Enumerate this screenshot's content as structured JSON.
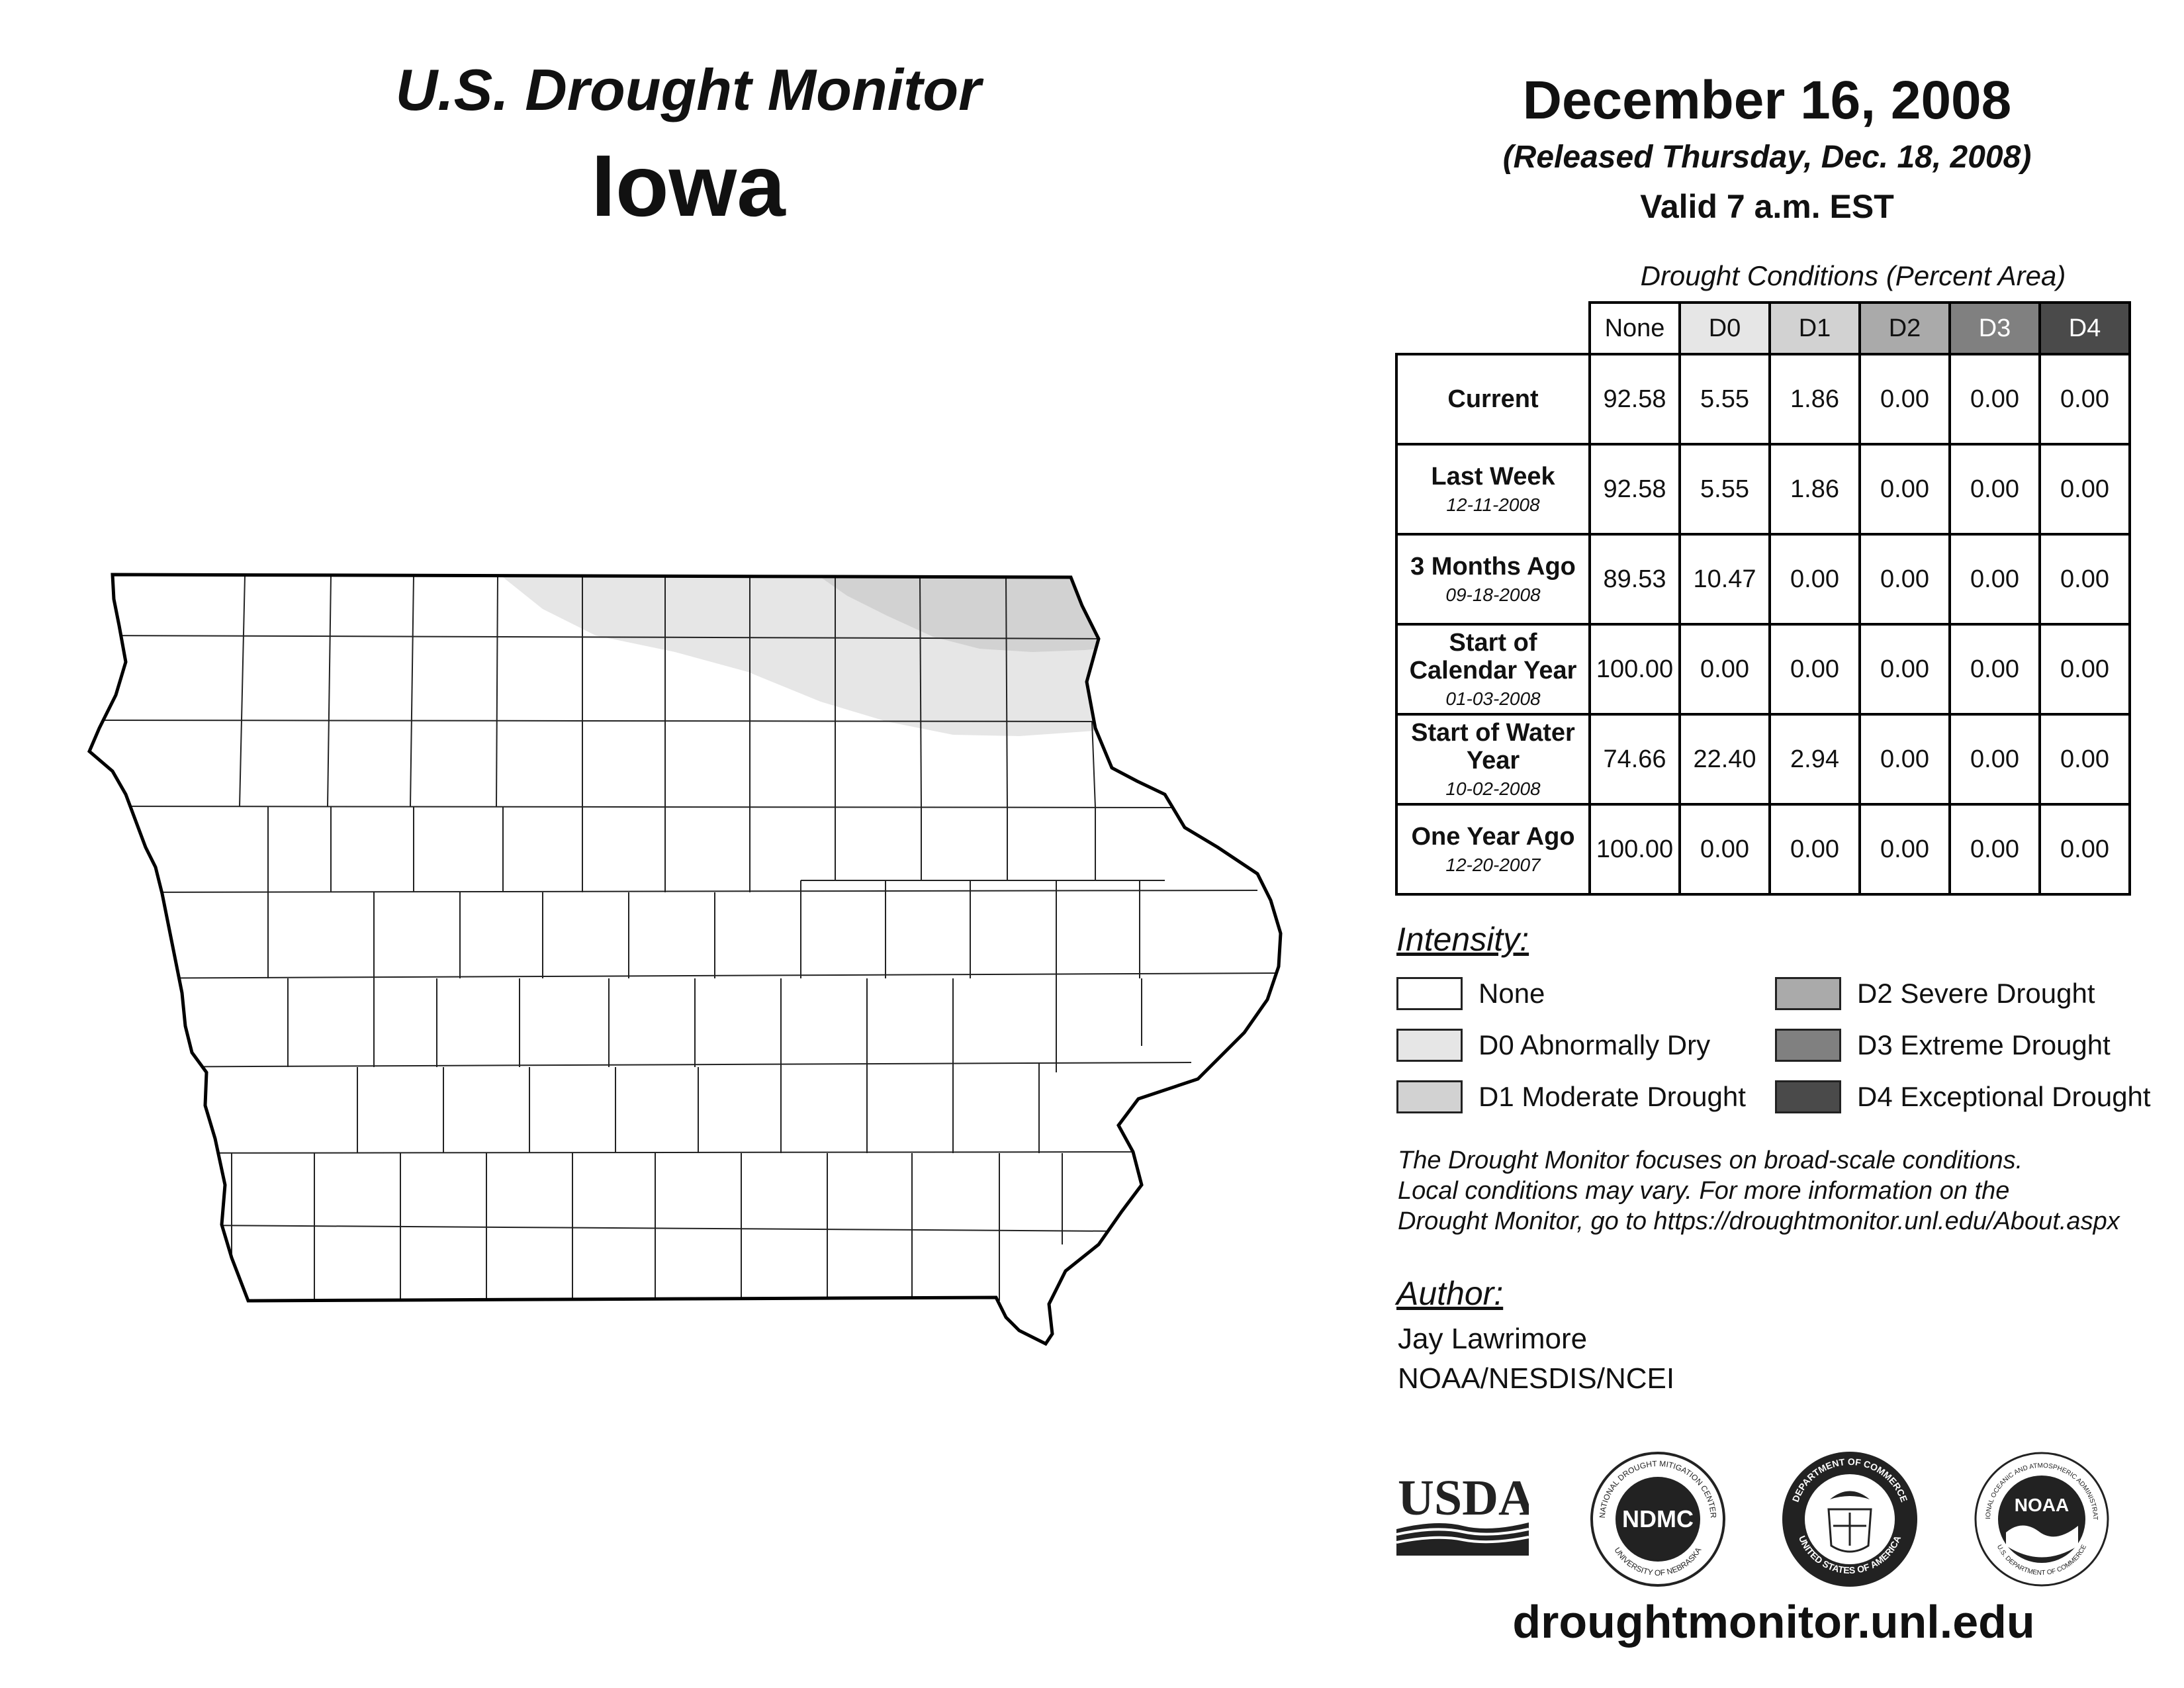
{
  "header": {
    "title": "U.S. Drought Monitor",
    "state": "Iowa",
    "date": "December 16, 2008",
    "released": "(Released Thursday, Dec. 18, 2008)",
    "valid": "Valid 7 a.m. EST"
  },
  "table": {
    "caption": "Drought Conditions (Percent Area)",
    "columns": [
      "None",
      "D0",
      "D1",
      "D2",
      "D3",
      "D4"
    ],
    "column_colors": [
      "#ffffff",
      "#e6e6e6",
      "#d2d2d2",
      "#aaaaaa",
      "#808080",
      "#4a4a4a"
    ],
    "rows": [
      {
        "label": "Current",
        "date": "",
        "values": [
          "92.58",
          "5.55",
          "1.86",
          "0.00",
          "0.00",
          "0.00"
        ]
      },
      {
        "label": "Last Week",
        "date": "12-11-2008",
        "values": [
          "92.58",
          "5.55",
          "1.86",
          "0.00",
          "0.00",
          "0.00"
        ]
      },
      {
        "label": "3 Months Ago",
        "date": "09-18-2008",
        "values": [
          "89.53",
          "10.47",
          "0.00",
          "0.00",
          "0.00",
          "0.00"
        ]
      },
      {
        "label": "Start of Calendar Year",
        "date": "01-03-2008",
        "values": [
          "100.00",
          "0.00",
          "0.00",
          "0.00",
          "0.00",
          "0.00"
        ]
      },
      {
        "label": "Start of Water Year",
        "date": "10-02-2008",
        "values": [
          "74.66",
          "22.40",
          "2.94",
          "0.00",
          "0.00",
          "0.00"
        ]
      },
      {
        "label": "One Year Ago",
        "date": "12-20-2007",
        "values": [
          "100.00",
          "0.00",
          "0.00",
          "0.00",
          "0.00",
          "0.00"
        ]
      }
    ]
  },
  "legend": {
    "title": "Intensity:",
    "items": [
      {
        "label": "None",
        "color": "#ffffff"
      },
      {
        "label": "D0 Abnormally Dry",
        "color": "#e6e6e6"
      },
      {
        "label": "D1 Moderate Drought",
        "color": "#d2d2d2"
      },
      {
        "label": "D2 Severe Drought",
        "color": "#aaaaaa"
      },
      {
        "label": "D3 Extreme Drought",
        "color": "#808080"
      },
      {
        "label": "D4 Exceptional Drought",
        "color": "#4a4a4a"
      }
    ]
  },
  "note": {
    "line1": "The Drought Monitor focuses on broad-scale conditions.",
    "line2": "Local conditions may vary. For more information on the",
    "line3": "Drought Monitor, go to https://droughtmonitor.unl.edu/About.aspx"
  },
  "author": {
    "title": "Author:",
    "name": "Jay Lawrimore",
    "org": "NOAA/NESDIS/NCEI"
  },
  "logos": {
    "usda": "USDA",
    "ndmc": "NDMC",
    "ndmc_ring_top": "NATIONAL DROUGHT MITIGATION CENTER",
    "ndmc_ring_bottom": "UNIVERSITY OF NEBRASKA",
    "doc_ring_top": "DEPARTMENT OF COMMERCE",
    "doc_ring_bottom": "UNITED STATES OF AMERICA",
    "noaa": "NOAA",
    "noaa_ring_top": "NATIONAL OCEANIC AND ATMOSPHERIC ADMINISTRATION",
    "noaa_ring_bottom": "U.S. DEPARTMENT OF COMMERCE"
  },
  "footer": {
    "url": "droughtmonitor.unl.edu"
  }
}
